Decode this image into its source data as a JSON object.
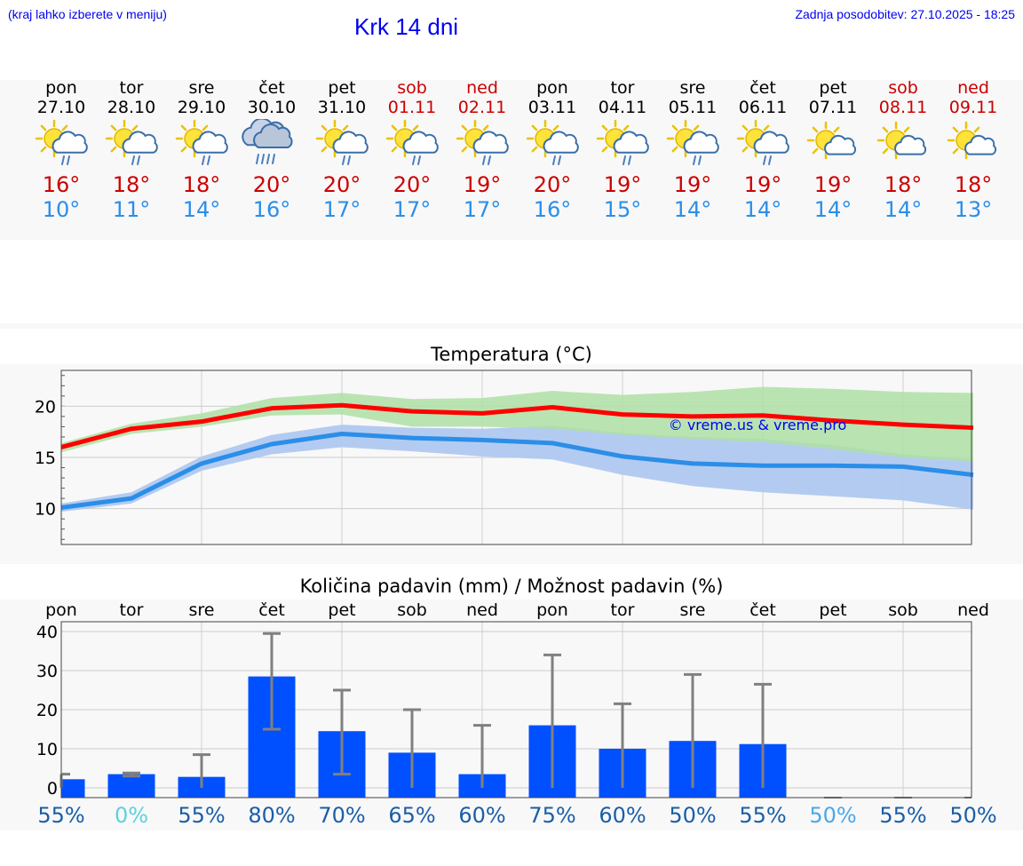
{
  "header": {
    "menu_hint": "(kraj lahko izberete v meniju)",
    "title": "Krk 14 dni",
    "last_update": "Zadnja posodobitev: 27.10.2025 - 18:25"
  },
  "colors": {
    "link": "#0000ee",
    "max_temp": "#ff0000",
    "min_temp": "#2b8ee8",
    "max_band": "#aee0a4",
    "min_band": "#b0c8f0",
    "bar": "#0050ff",
    "weekend": "#cc0000"
  },
  "days": [
    {
      "name": "pon",
      "date": "27.10",
      "weekend": false,
      "icon": "sun-cloud-rain-icon",
      "tmax": "16°",
      "tmin": "10°"
    },
    {
      "name": "tor",
      "date": "28.10",
      "weekend": false,
      "icon": "sun-cloud-rain-icon",
      "tmax": "18°",
      "tmin": "11°"
    },
    {
      "name": "sre",
      "date": "29.10",
      "weekend": false,
      "icon": "sun-cloud-rain-icon",
      "tmax": "18°",
      "tmin": "14°"
    },
    {
      "name": "čet",
      "date": "30.10",
      "weekend": false,
      "icon": "heavy-rain-cloud-icon",
      "tmax": "20°",
      "tmin": "16°"
    },
    {
      "name": "pet",
      "date": "31.10",
      "weekend": false,
      "icon": "sun-cloud-rain-icon",
      "tmax": "20°",
      "tmin": "17°"
    },
    {
      "name": "sob",
      "date": "01.11",
      "weekend": true,
      "icon": "sun-cloud-rain-icon",
      "tmax": "20°",
      "tmin": "17°"
    },
    {
      "name": "ned",
      "date": "02.11",
      "weekend": true,
      "icon": "sun-cloud-rain-icon",
      "tmax": "19°",
      "tmin": "17°"
    },
    {
      "name": "pon",
      "date": "03.11",
      "weekend": false,
      "icon": "sun-cloud-rain-icon",
      "tmax": "20°",
      "tmin": "16°"
    },
    {
      "name": "tor",
      "date": "04.11",
      "weekend": false,
      "icon": "sun-cloud-rain-icon",
      "tmax": "19°",
      "tmin": "15°"
    },
    {
      "name": "sre",
      "date": "05.11",
      "weekend": false,
      "icon": "sun-cloud-rain-icon",
      "tmax": "19°",
      "tmin": "14°"
    },
    {
      "name": "čet",
      "date": "06.11",
      "weekend": false,
      "icon": "sun-cloud-rain-icon",
      "tmax": "19°",
      "tmin": "14°"
    },
    {
      "name": "pet",
      "date": "07.11",
      "weekend": false,
      "icon": "sun-cloud-icon",
      "tmax": "19°",
      "tmin": "14°"
    },
    {
      "name": "sob",
      "date": "08.11",
      "weekend": true,
      "icon": "sun-cloud-icon",
      "tmax": "18°",
      "tmin": "14°"
    },
    {
      "name": "ned",
      "date": "09.11",
      "weekend": true,
      "icon": "sun-cloud-icon",
      "tmax": "18°",
      "tmin": "13°"
    }
  ],
  "chart_data": [
    {
      "type": "line",
      "title": "Temperatura (°C)",
      "watermark": "© vreme.us & vreme.pro",
      "ylim": [
        6.5,
        23.5
      ],
      "yticks": [
        "10",
        "15",
        "20"
      ],
      "grid": true,
      "series": [
        {
          "name": "max",
          "values": [
            16.0,
            17.8,
            18.5,
            19.8,
            20.1,
            19.5,
            19.3,
            19.9,
            19.2,
            19.0,
            19.1,
            18.6,
            18.2,
            17.9
          ],
          "band_low": [
            15.5,
            17.3,
            18.0,
            19.1,
            19.2,
            18.0,
            18.0,
            17.8,
            17.2,
            16.8,
            16.5,
            15.8,
            15.0,
            14.6
          ],
          "band_high": [
            16.4,
            18.3,
            19.3,
            20.8,
            21.3,
            20.7,
            20.8,
            21.5,
            21.1,
            21.4,
            21.9,
            21.7,
            21.4,
            21.3
          ]
        },
        {
          "name": "min",
          "values": [
            10.1,
            11.0,
            14.4,
            16.3,
            17.3,
            16.9,
            16.7,
            16.4,
            15.1,
            14.4,
            14.2,
            14.2,
            14.1,
            13.3
          ],
          "band_low": [
            9.7,
            10.5,
            13.7,
            15.3,
            16.0,
            15.6,
            15.1,
            14.8,
            13.3,
            12.2,
            11.6,
            11.2,
            10.8,
            9.9
          ],
          "band_high": [
            10.5,
            11.6,
            15.1,
            17.2,
            18.2,
            17.9,
            17.8,
            18.1,
            17.4,
            17.0,
            16.8,
            16.2,
            15.3,
            14.8
          ]
        }
      ]
    },
    {
      "type": "bar",
      "title": "Količina padavin (mm) / Možnost padavin (%)",
      "categories": [
        "pon",
        "tor",
        "sre",
        "čet",
        "pet",
        "sob",
        "ned",
        "pon",
        "tor",
        "sre",
        "čet",
        "pet",
        "sob",
        "ned"
      ],
      "ylim": [
        -2.5,
        42.5
      ],
      "yticks": [
        "0",
        "10",
        "20",
        "30",
        "40"
      ],
      "values": [
        2.2,
        3.5,
        2.8,
        28.5,
        14.5,
        9.0,
        3.5,
        16.0,
        10.0,
        12.0,
        11.2,
        0,
        0,
        0
      ],
      "err_low": [
        0,
        3.0,
        0,
        15.0,
        3.5,
        0,
        0,
        0,
        0,
        0,
        0,
        0,
        0,
        0
      ],
      "err_high": [
        3.5,
        3.8,
        8.5,
        39.5,
        25.0,
        20.0,
        16.0,
        34.0,
        21.5,
        29.0,
        26.5,
        0,
        0,
        0
      ],
      "chances": [
        {
          "label": "55%",
          "muted": false
        },
        {
          "label": "0%",
          "muted": true
        },
        {
          "label": "55%",
          "muted": false
        },
        {
          "label": "80%",
          "muted": false
        },
        {
          "label": "70%",
          "muted": false
        },
        {
          "label": "65%",
          "muted": false
        },
        {
          "label": "60%",
          "muted": false
        },
        {
          "label": "75%",
          "muted": false
        },
        {
          "label": "60%",
          "muted": false
        },
        {
          "label": "50%",
          "muted": false
        },
        {
          "label": "55%",
          "muted": false
        },
        {
          "label": "50%",
          "muted": true
        },
        {
          "label": "55%",
          "muted": false
        },
        {
          "label": "50%",
          "muted": false
        }
      ]
    }
  ]
}
